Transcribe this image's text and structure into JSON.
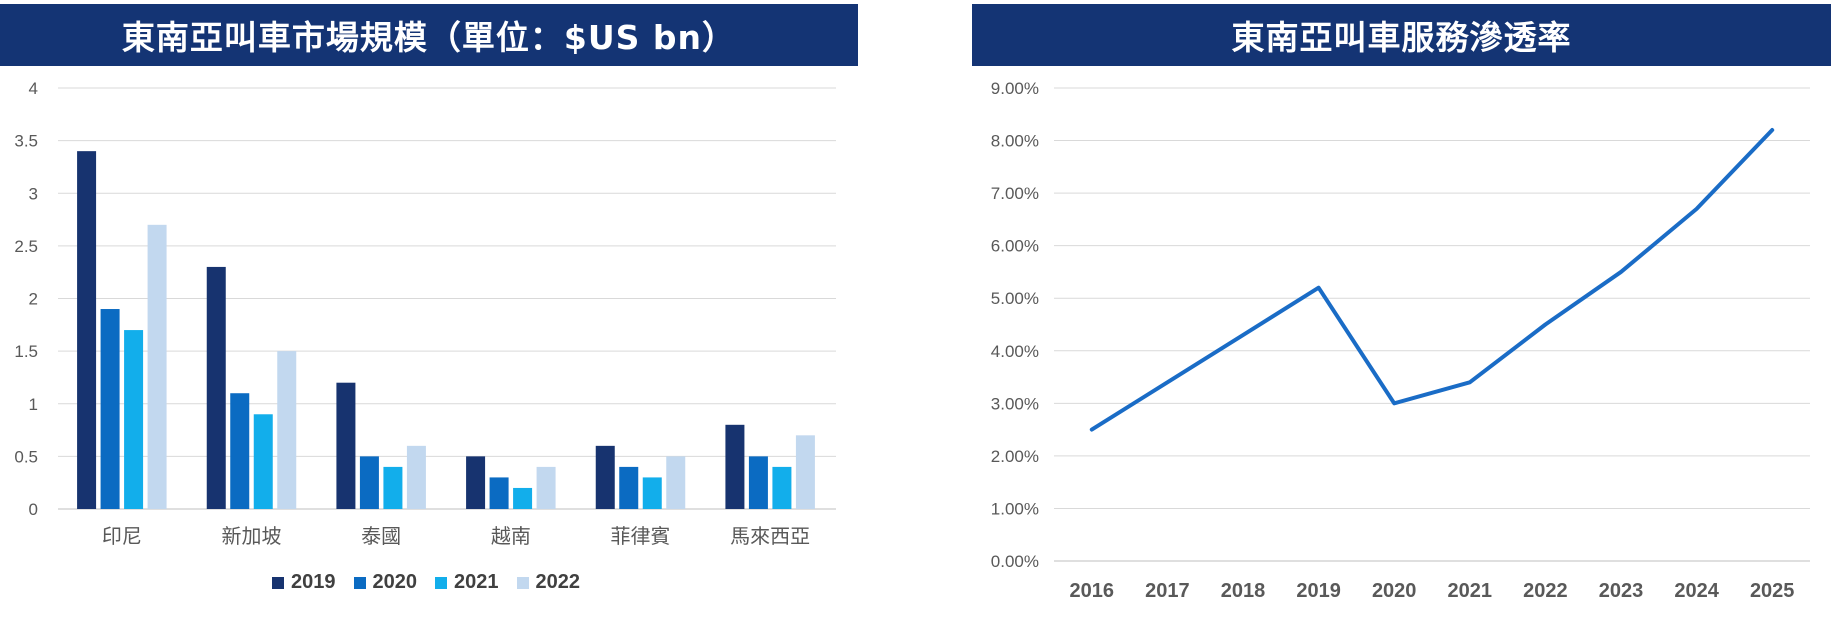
{
  "chart_data": [
    {
      "type": "bar",
      "title": "東南亞叫車市場規模（單位：$US bn）",
      "categories": [
        "印尼",
        "新加坡",
        "泰國",
        "越南",
        "菲律賓",
        "馬來西亞"
      ],
      "series": [
        {
          "name": "2019",
          "color": "#17336F",
          "values": [
            3.4,
            2.3,
            1.2,
            0.5,
            0.6,
            0.8
          ]
        },
        {
          "name": "2020",
          "color": "#0B6BC2",
          "values": [
            1.9,
            1.1,
            0.5,
            0.3,
            0.4,
            0.5
          ]
        },
        {
          "name": "2021",
          "color": "#12AEEB",
          "values": [
            1.7,
            0.9,
            0.4,
            0.2,
            0.3,
            0.4
          ]
        },
        {
          "name": "2022",
          "color": "#C2D8EF",
          "values": [
            2.7,
            1.5,
            0.6,
            0.4,
            0.5,
            0.7
          ]
        }
      ],
      "yticks": [
        "0",
        "0.5",
        "1",
        "1.5",
        "2",
        "2.5",
        "3",
        "3.5",
        "4"
      ],
      "ylim": [
        0,
        4
      ],
      "grid": true,
      "legend": "bottom"
    },
    {
      "type": "line",
      "title": "東南亞叫車服務滲透率",
      "x": [
        "2016",
        "2017",
        "2018",
        "2019",
        "2020",
        "2021",
        "2022",
        "2023",
        "2024",
        "2025"
      ],
      "series": [
        {
          "color": "#1A6CC6",
          "values": [
            0.025,
            0.034,
            0.043,
            0.052,
            0.03,
            0.034,
            0.045,
            0.055,
            0.067,
            0.082
          ]
        }
      ],
      "yticks": [
        "0.00%",
        "1.00%",
        "2.00%",
        "3.00%",
        "4.00%",
        "5.00%",
        "6.00%",
        "7.00%",
        "8.00%",
        "9.00%"
      ],
      "ylim": [
        0,
        0.09
      ],
      "grid": true,
      "legend": "none"
    }
  ]
}
